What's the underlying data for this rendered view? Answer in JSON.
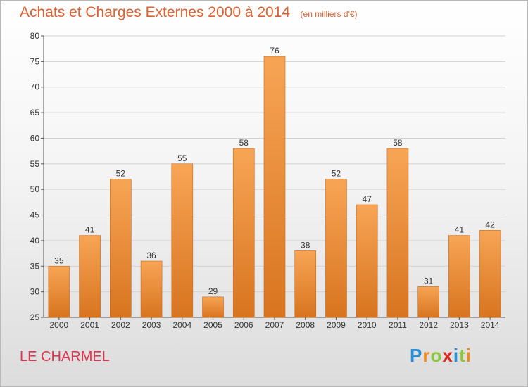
{
  "title": "Achats et Charges Externes 2000 à 2014",
  "subtitle": "(en milliers d'€)",
  "commune": "LE CHARMEL",
  "logo": {
    "text": "Proxiti",
    "letters": [
      {
        "ch": "P",
        "color": "#2b8fd6"
      },
      {
        "ch": "r",
        "color": "#f08a1c"
      },
      {
        "ch": "o",
        "color": "#8cc63f"
      },
      {
        "ch": "x",
        "color": "#e2231a"
      },
      {
        "ch": "i",
        "color": "#2b8fd6"
      },
      {
        "ch": "t",
        "color": "#8cc63f"
      },
      {
        "ch": "i",
        "color": "#f08a1c"
      }
    ]
  },
  "colors": {
    "bar_top": "#f7a555",
    "bar_bottom": "#d8741f",
    "bar_stroke": "#c8691a",
    "grid": "#d2d2d2",
    "title": "#e0612f",
    "commune": "#e0334f"
  },
  "chart_data": {
    "type": "bar",
    "categories": [
      "2000",
      "2001",
      "2002",
      "2003",
      "2004",
      "2005",
      "2006",
      "2007",
      "2008",
      "2009",
      "2010",
      "2011",
      "2012",
      "2013",
      "2014"
    ],
    "values": [
      35,
      41,
      52,
      36,
      55,
      29,
      58,
      76,
      38,
      52,
      47,
      58,
      31,
      41,
      42
    ],
    "ylim": [
      25,
      80
    ],
    "yticks": [
      25,
      30,
      35,
      40,
      45,
      50,
      55,
      60,
      65,
      70,
      75,
      80
    ],
    "grid": true,
    "xlabel": "",
    "ylabel": ""
  }
}
